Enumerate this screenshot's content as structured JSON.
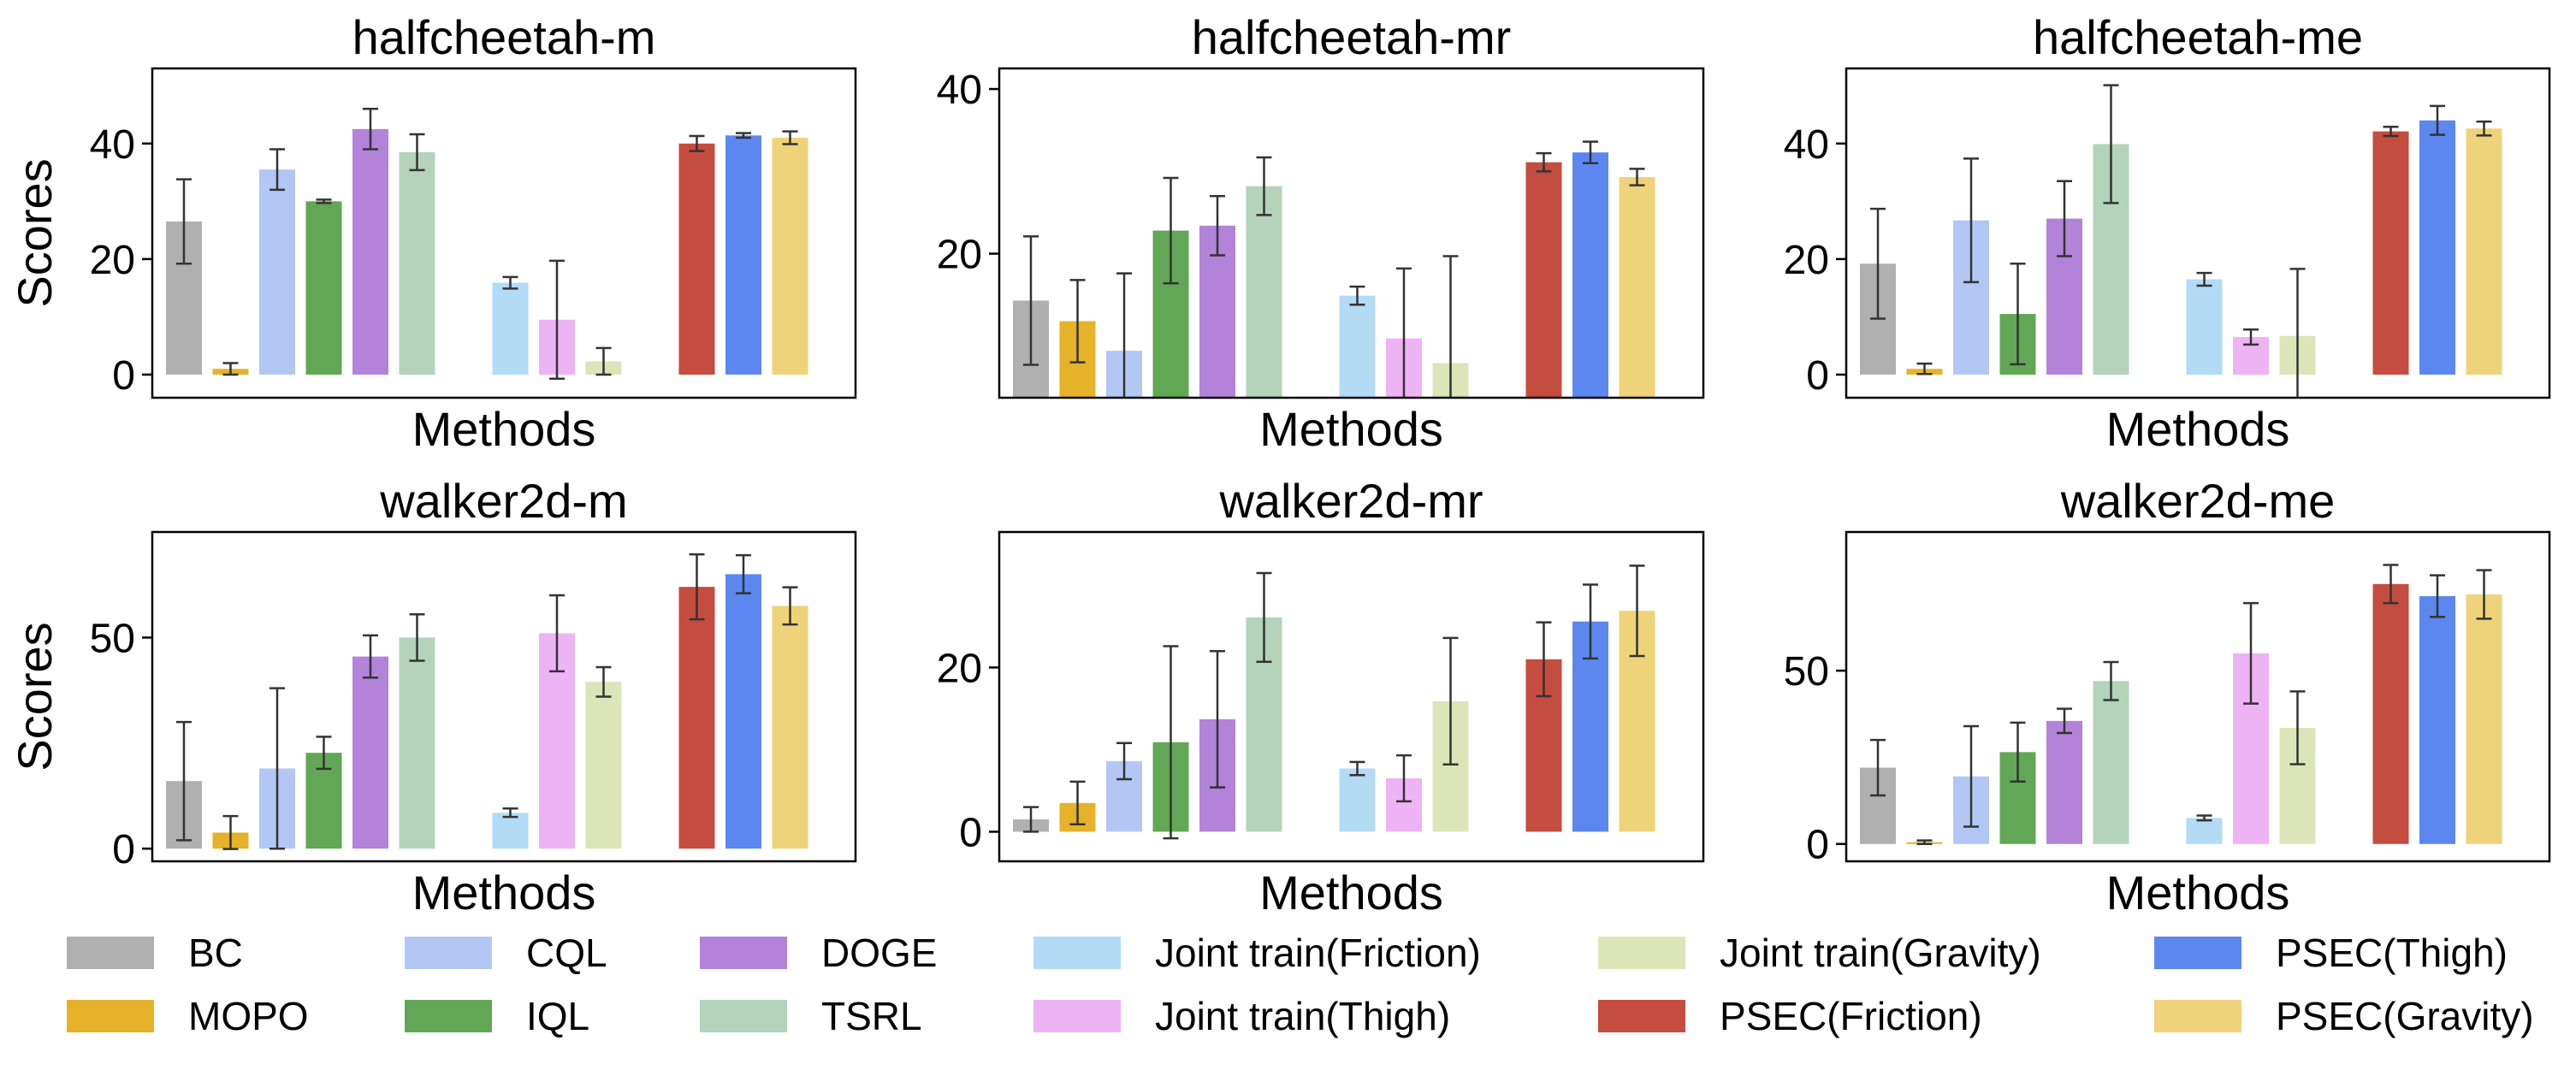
{
  "chart_data": [
    {
      "type": "bar",
      "title": "halfcheetah-m",
      "xlabel": "Methods",
      "ylabel": "Scores",
      "ylim": [
        -4,
        53
      ],
      "yticks": [
        0,
        20,
        40
      ],
      "values": [
        26.5,
        1.0,
        35.5,
        30.0,
        42.5,
        38.5,
        15.9,
        9.5,
        2.3,
        40.0,
        41.4,
        41.0
      ],
      "errors": [
        7.3,
        1.0,
        3.5,
        0.3,
        3.5,
        3.1,
        1.0,
        10.2,
        2.3,
        1.3,
        0.4,
        1.1
      ]
    },
    {
      "type": "bar",
      "title": "halfcheetah-mr",
      "xlabel": "Methods",
      "ylabel": "",
      "ylim": [
        2.5,
        42.5
      ],
      "yticks": [
        20,
        40
      ],
      "values": [
        14.3,
        11.8,
        8.2,
        22.8,
        23.4,
        28.2,
        14.9,
        9.7,
        6.7,
        31.1,
        32.3,
        29.3
      ],
      "errors": [
        7.8,
        5.0,
        9.4,
        6.4,
        3.6,
        3.5,
        1.1,
        8.5,
        13.0,
        1.1,
        1.3,
        1.0
      ]
    },
    {
      "type": "bar",
      "title": "halfcheetah-me",
      "xlabel": "Methods",
      "ylabel": "",
      "ylim": [
        -4,
        53
      ],
      "yticks": [
        0,
        20,
        40
      ],
      "values": [
        19.2,
        1.0,
        26.7,
        10.5,
        27.0,
        39.9,
        16.5,
        6.5,
        6.7,
        42.1,
        44.0,
        42.6
      ],
      "errors": [
        9.5,
        0.9,
        10.7,
        8.7,
        6.5,
        10.2,
        1.1,
        1.3,
        11.6,
        0.8,
        2.5,
        1.2
      ]
    },
    {
      "type": "bar",
      "title": "walker2d-m",
      "xlabel": "Methods",
      "ylabel": "Scores",
      "ylim": [
        -3,
        75
      ],
      "yticks": [
        0,
        50
      ],
      "values": [
        16.0,
        3.8,
        19.0,
        22.7,
        45.5,
        50.0,
        8.5,
        51.0,
        39.5,
        62.0,
        65.0,
        57.5
      ],
      "errors": [
        14.0,
        3.9,
        19.0,
        3.8,
        5.0,
        5.5,
        1.0,
        9.0,
        3.5,
        7.7,
        4.5,
        4.4
      ]
    },
    {
      "type": "bar",
      "title": "walker2d-mr",
      "xlabel": "Methods",
      "ylabel": "",
      "ylim": [
        -3.6,
        36.5
      ],
      "yticks": [
        0,
        20
      ],
      "values": [
        1.5,
        3.5,
        8.6,
        10.9,
        13.7,
        26.1,
        7.7,
        6.5,
        15.9,
        21.0,
        25.6,
        26.9
      ],
      "errors": [
        1.5,
        2.6,
        2.2,
        11.7,
        8.3,
        5.4,
        0.8,
        2.8,
        7.7,
        4.5,
        4.5,
        5.5
      ]
    },
    {
      "type": "bar",
      "title": "walker2d-me",
      "xlabel": "Methods",
      "ylabel": "",
      "ylim": [
        -5,
        90
      ],
      "yticks": [
        0,
        50
      ],
      "values": [
        22.0,
        0.5,
        19.5,
        26.5,
        35.5,
        47.0,
        7.5,
        55.0,
        33.5,
        75.0,
        71.5,
        72.0
      ],
      "errors": [
        8.0,
        0.5,
        14.5,
        8.5,
        3.5,
        5.5,
        0.7,
        14.5,
        10.5,
        5.5,
        6.0,
        7.0
      ]
    }
  ],
  "legend": {
    "entries": [
      {
        "label": "BC",
        "color": "#b0b0b0"
      },
      {
        "label": "MOPO",
        "color": "#e5b229"
      },
      {
        "label": "CQL",
        "color": "#b3c7f5"
      },
      {
        "label": "IQL",
        "color": "#62a755"
      },
      {
        "label": "DOGE",
        "color": "#b283d9"
      },
      {
        "label": "TSRL",
        "color": "#b3d3ba"
      },
      {
        "label": "Joint train(Friction)",
        "color": "#b3dbf5"
      },
      {
        "label": "Joint train(Thigh)",
        "color": "#eeb3f5"
      },
      {
        "label": "Joint train(Gravity)",
        "color": "#dce5b8"
      },
      {
        "label": "PSEC(Friction)",
        "color": "#c44d3f"
      },
      {
        "label": "PSEC(Thigh)",
        "color": "#5b87ef"
      },
      {
        "label": "PSEC(Gravity)",
        "color": "#efd37a"
      }
    ]
  }
}
